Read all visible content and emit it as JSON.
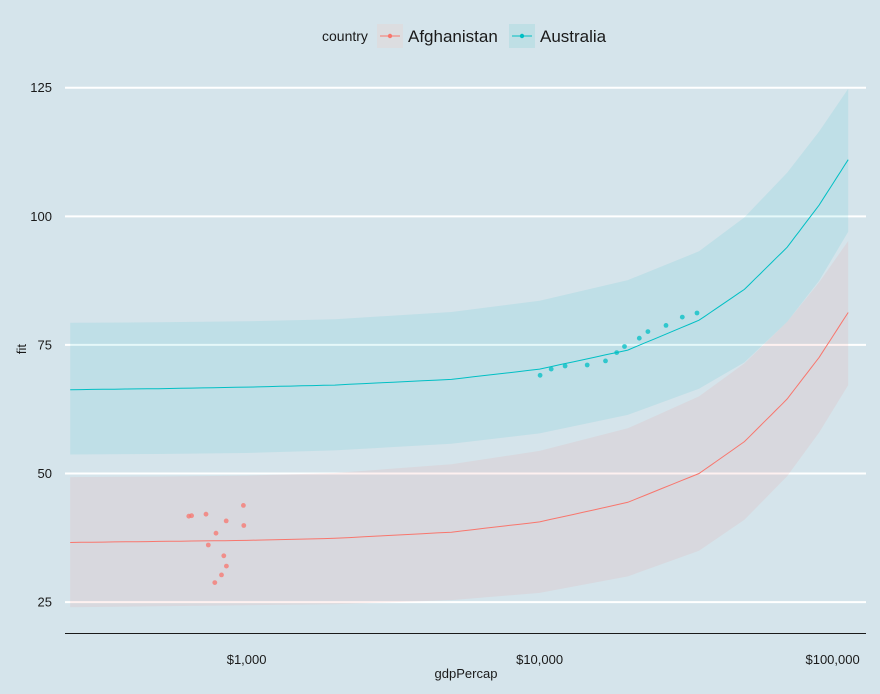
{
  "chart_data": {
    "type": "scatter",
    "xlabel": "gdpPercap",
    "ylabel": "fit",
    "x_scale": "log10",
    "xlim": [
      240,
      130000
    ],
    "ylim": [
      19,
      130
    ],
    "x_ticks": [
      1000,
      10000,
      100000
    ],
    "x_tick_labels": [
      "$1,000",
      "$10,000",
      "$100,000"
    ],
    "y_ticks": [
      25,
      50,
      75,
      100,
      125
    ],
    "y_tick_labels": [
      "25",
      "50",
      "75",
      "100",
      "125"
    ],
    "grid": "horizontal",
    "legend": {
      "title": "country",
      "position": "top"
    },
    "series": [
      {
        "name": "Afghanistan",
        "color": "#f8766d",
        "points": [
          {
            "x": 779,
            "y": 28.8
          },
          {
            "x": 821,
            "y": 30.3
          },
          {
            "x": 853,
            "y": 32.0
          },
          {
            "x": 836,
            "y": 34.0
          },
          {
            "x": 740,
            "y": 36.1
          },
          {
            "x": 786,
            "y": 38.4
          },
          {
            "x": 978,
            "y": 39.9
          },
          {
            "x": 852,
            "y": 40.8
          },
          {
            "x": 649,
            "y": 41.8
          },
          {
            "x": 635,
            "y": 41.7
          },
          {
            "x": 727,
            "y": 42.1
          },
          {
            "x": 975,
            "y": 43.8
          }
        ],
        "fit": [
          {
            "x": 250,
            "y": 36.6
          },
          {
            "x": 500,
            "y": 36.8
          },
          {
            "x": 1000,
            "y": 37.0
          },
          {
            "x": 2000,
            "y": 37.4
          },
          {
            "x": 5000,
            "y": 38.6
          },
          {
            "x": 10000,
            "y": 40.6
          },
          {
            "x": 20000,
            "y": 44.4
          },
          {
            "x": 35000,
            "y": 50.0
          },
          {
            "x": 50000,
            "y": 56.2
          },
          {
            "x": 70000,
            "y": 64.5
          },
          {
            "x": 90000,
            "y": 72.6
          },
          {
            "x": 113000,
            "y": 81.3
          }
        ],
        "ci_lower": [
          {
            "x": 250,
            "y": 24.0
          },
          {
            "x": 500,
            "y": 24.2
          },
          {
            "x": 1000,
            "y": 24.4
          },
          {
            "x": 2000,
            "y": 24.6
          },
          {
            "x": 5000,
            "y": 25.4
          },
          {
            "x": 10000,
            "y": 26.8
          },
          {
            "x": 20000,
            "y": 30.0
          },
          {
            "x": 35000,
            "y": 35.0
          },
          {
            "x": 50000,
            "y": 41.0
          },
          {
            "x": 70000,
            "y": 49.5
          },
          {
            "x": 90000,
            "y": 58.0
          },
          {
            "x": 113000,
            "y": 67.2
          }
        ],
        "ci_upper": [
          {
            "x": 250,
            "y": 49.3
          },
          {
            "x": 500,
            "y": 49.4
          },
          {
            "x": 1000,
            "y": 49.6
          },
          {
            "x": 2000,
            "y": 50.1
          },
          {
            "x": 5000,
            "y": 51.8
          },
          {
            "x": 10000,
            "y": 54.4
          },
          {
            "x": 20000,
            "y": 58.8
          },
          {
            "x": 35000,
            "y": 65.0
          },
          {
            "x": 50000,
            "y": 71.4
          },
          {
            "x": 70000,
            "y": 79.5
          },
          {
            "x": 90000,
            "y": 87.2
          },
          {
            "x": 113000,
            "y": 95.2
          }
        ]
      },
      {
        "name": "Australia",
        "color": "#00bfc4",
        "points": [
          {
            "x": 10040,
            "y": 69.1
          },
          {
            "x": 10950,
            "y": 70.3
          },
          {
            "x": 12220,
            "y": 70.9
          },
          {
            "x": 14530,
            "y": 71.1
          },
          {
            "x": 16790,
            "y": 71.9
          },
          {
            "x": 18330,
            "y": 73.5
          },
          {
            "x": 19480,
            "y": 74.7
          },
          {
            "x": 21890,
            "y": 76.3
          },
          {
            "x": 23420,
            "y": 77.6
          },
          {
            "x": 26990,
            "y": 78.8
          },
          {
            "x": 30690,
            "y": 80.4
          },
          {
            "x": 34440,
            "y": 81.2
          }
        ],
        "fit": [
          {
            "x": 250,
            "y": 66.3
          },
          {
            "x": 500,
            "y": 66.5
          },
          {
            "x": 1000,
            "y": 66.8
          },
          {
            "x": 2000,
            "y": 67.2
          },
          {
            "x": 5000,
            "y": 68.3
          },
          {
            "x": 10000,
            "y": 70.3
          },
          {
            "x": 20000,
            "y": 74.0
          },
          {
            "x": 35000,
            "y": 79.8
          },
          {
            "x": 50000,
            "y": 85.8
          },
          {
            "x": 70000,
            "y": 94.0
          },
          {
            "x": 90000,
            "y": 102.2
          },
          {
            "x": 113000,
            "y": 111.0
          }
        ],
        "ci_lower": [
          {
            "x": 250,
            "y": 53.7
          },
          {
            "x": 500,
            "y": 53.8
          },
          {
            "x": 1000,
            "y": 54.0
          },
          {
            "x": 2000,
            "y": 54.5
          },
          {
            "x": 5000,
            "y": 55.8
          },
          {
            "x": 10000,
            "y": 57.8
          },
          {
            "x": 20000,
            "y": 61.4
          },
          {
            "x": 35000,
            "y": 66.5
          },
          {
            "x": 50000,
            "y": 71.6
          },
          {
            "x": 70000,
            "y": 79.5
          },
          {
            "x": 90000,
            "y": 87.5
          },
          {
            "x": 113000,
            "y": 97.0
          }
        ],
        "ci_upper": [
          {
            "x": 250,
            "y": 79.3
          },
          {
            "x": 500,
            "y": 79.4
          },
          {
            "x": 1000,
            "y": 79.6
          },
          {
            "x": 2000,
            "y": 80.0
          },
          {
            "x": 5000,
            "y": 81.4
          },
          {
            "x": 10000,
            "y": 83.6
          },
          {
            "x": 20000,
            "y": 87.6
          },
          {
            "x": 35000,
            "y": 93.2
          },
          {
            "x": 50000,
            "y": 99.8
          },
          {
            "x": 70000,
            "y": 108.5
          },
          {
            "x": 90000,
            "y": 116.5
          },
          {
            "x": 113000,
            "y": 124.8
          }
        ]
      }
    ]
  },
  "colors": {
    "background": "#d5e4eb",
    "gridline": "#ffffff",
    "axis_line": "#1a1a1a"
  }
}
